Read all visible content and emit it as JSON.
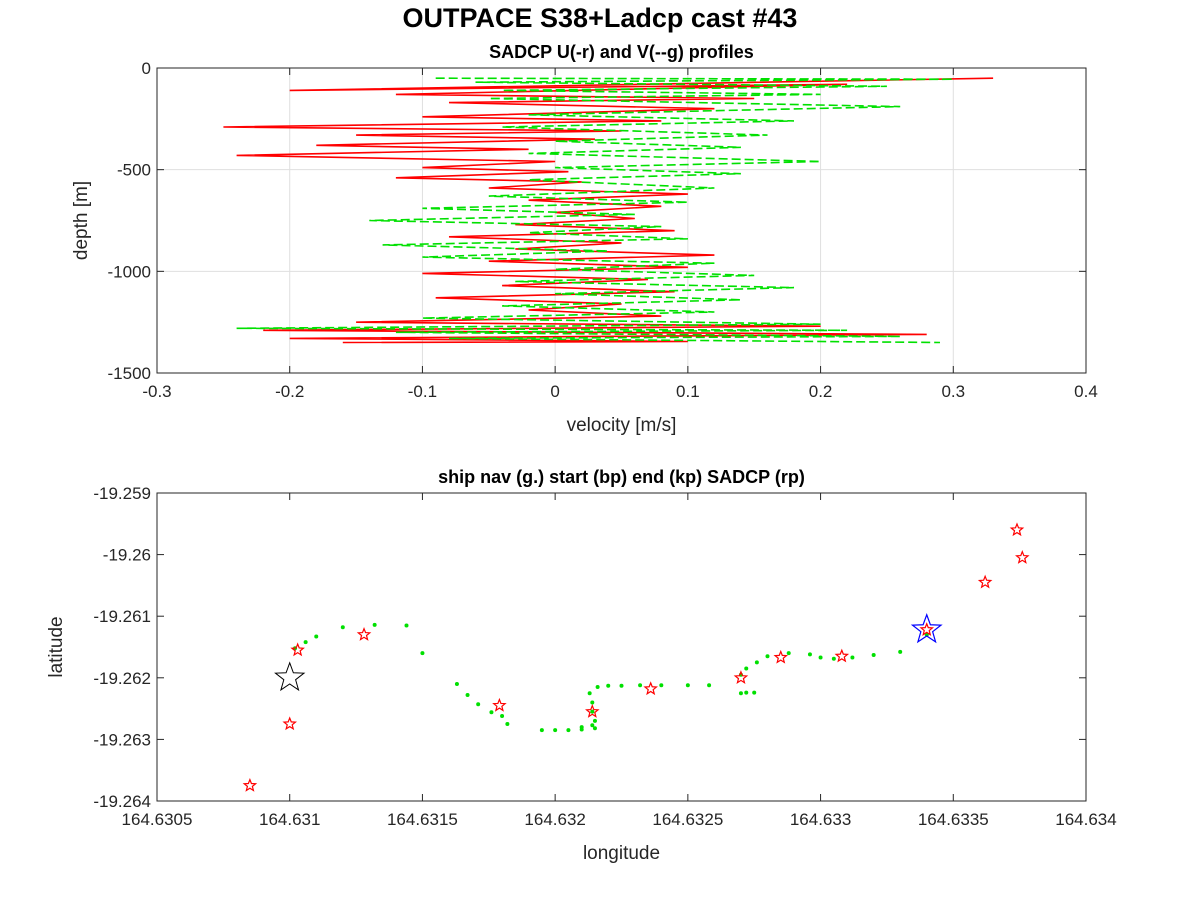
{
  "figure_title": "OUTPACE S38+Ladcp cast #43",
  "chart_data": [
    {
      "type": "line",
      "title": "SADCP U(-r) and V(--g) profiles",
      "xlabel": "velocity [m/s]",
      "ylabel": "depth [m]",
      "xlim": [
        -0.3,
        0.4
      ],
      "ylim": [
        -1500,
        0
      ],
      "xticks": [
        -0.3,
        -0.2,
        -0.1,
        0,
        0.1,
        0.2,
        0.3,
        0.4
      ],
      "yticks": [
        -1500,
        -1000,
        -500,
        0
      ],
      "xtick_labels": [
        "-0.3",
        "-0.2",
        "-0.1",
        "0",
        "0.1",
        "0.2",
        "0.3",
        "0.4"
      ],
      "ytick_labels": [
        "-1500",
        "-1000",
        "-500",
        "0"
      ],
      "grid": true,
      "series": [
        {
          "label": "U",
          "color": "#ff0000",
          "style": "solid",
          "points": [
            [
              0.33,
              -50
            ],
            [
              -0.2,
              -110
            ],
            [
              0.22,
              -80
            ],
            [
              -0.12,
              -130
            ],
            [
              0.15,
              -150
            ],
            [
              -0.08,
              -170
            ],
            [
              0.12,
              -200
            ],
            [
              -0.1,
              -240
            ],
            [
              0.08,
              -260
            ],
            [
              -0.25,
              -290
            ],
            [
              0.05,
              -310
            ],
            [
              -0.15,
              -330
            ],
            [
              0.03,
              -350
            ],
            [
              -0.18,
              -380
            ],
            [
              -0.02,
              -400
            ],
            [
              -0.24,
              -430
            ],
            [
              0.0,
              -460
            ],
            [
              -0.1,
              -490
            ],
            [
              0.01,
              -510
            ],
            [
              -0.12,
              -540
            ],
            [
              0.02,
              -560
            ],
            [
              -0.05,
              -590
            ],
            [
              0.1,
              -620
            ],
            [
              -0.02,
              -650
            ],
            [
              0.08,
              -680
            ],
            [
              0.0,
              -710
            ],
            [
              0.06,
              -740
            ],
            [
              -0.03,
              -770
            ],
            [
              0.09,
              -800
            ],
            [
              -0.08,
              -830
            ],
            [
              0.05,
              -860
            ],
            [
              -0.03,
              -890
            ],
            [
              0.12,
              -920
            ],
            [
              -0.05,
              -950
            ],
            [
              0.1,
              -980
            ],
            [
              -0.1,
              -1010
            ],
            [
              0.07,
              -1040
            ],
            [
              -0.04,
              -1070
            ],
            [
              0.09,
              -1100
            ],
            [
              -0.09,
              -1130
            ],
            [
              0.05,
              -1160
            ],
            [
              -0.02,
              -1190
            ],
            [
              0.08,
              -1220
            ],
            [
              -0.15,
              -1250
            ],
            [
              0.2,
              -1270
            ],
            [
              -0.22,
              -1290
            ],
            [
              0.28,
              -1310
            ],
            [
              -0.2,
              -1330
            ],
            [
              0.1,
              -1345
            ],
            [
              -0.16,
              -1350
            ]
          ]
        },
        {
          "label": "V",
          "color": "#00e000",
          "style": "dashed",
          "points": [
            [
              -0.09,
              -50
            ],
            [
              0.3,
              -55
            ],
            [
              -0.06,
              -70
            ],
            [
              0.25,
              -90
            ],
            [
              -0.04,
              -110
            ],
            [
              0.2,
              -130
            ],
            [
              -0.05,
              -150
            ],
            [
              0.26,
              -190
            ],
            [
              -0.02,
              -230
            ],
            [
              0.18,
              -260
            ],
            [
              -0.04,
              -290
            ],
            [
              0.16,
              -330
            ],
            [
              0.0,
              -360
            ],
            [
              0.14,
              -390
            ],
            [
              -0.02,
              -420
            ],
            [
              0.2,
              -460
            ],
            [
              0.0,
              -490
            ],
            [
              0.14,
              -520
            ],
            [
              -0.02,
              -550
            ],
            [
              0.12,
              -590
            ],
            [
              -0.05,
              -630
            ],
            [
              0.1,
              -660
            ],
            [
              -0.1,
              -690
            ],
            [
              0.06,
              -720
            ],
            [
              -0.14,
              -750
            ],
            [
              0.08,
              -780
            ],
            [
              -0.02,
              -810
            ],
            [
              0.1,
              -840
            ],
            [
              -0.13,
              -870
            ],
            [
              0.04,
              -900
            ],
            [
              -0.1,
              -930
            ],
            [
              0.12,
              -960
            ],
            [
              0.0,
              -990
            ],
            [
              0.15,
              -1020
            ],
            [
              -0.03,
              -1050
            ],
            [
              0.18,
              -1080
            ],
            [
              0.0,
              -1110
            ],
            [
              0.14,
              -1140
            ],
            [
              -0.04,
              -1170
            ],
            [
              0.12,
              -1200
            ],
            [
              -0.1,
              -1230
            ],
            [
              0.2,
              -1260
            ],
            [
              -0.24,
              -1280
            ],
            [
              0.22,
              -1290
            ],
            [
              -0.12,
              -1300
            ],
            [
              0.26,
              -1320
            ],
            [
              -0.08,
              -1330
            ],
            [
              0.29,
              -1350
            ]
          ]
        }
      ]
    },
    {
      "type": "scatter",
      "title": "ship nav (g.) start (bp) end (kp) SADCP (rp)",
      "xlabel": "longitude",
      "ylabel": "latitude",
      "xlim": [
        164.6305,
        164.634
      ],
      "ylim": [
        -19.264,
        -19.259
      ],
      "xticks": [
        164.6305,
        164.631,
        164.6315,
        164.632,
        164.6325,
        164.633,
        164.6335,
        164.634
      ],
      "yticks": [
        -19.264,
        -19.263,
        -19.262,
        -19.261,
        -19.26,
        -19.259
      ],
      "xtick_labels": [
        "164.6305",
        "164.631",
        "164.6315",
        "164.632",
        "164.6325",
        "164.633",
        "164.6335",
        "164.634"
      ],
      "ytick_labels": [
        "-19.264",
        "-19.263",
        "-19.262",
        "-19.261",
        "-19.26",
        "-19.259"
      ],
      "grid": false,
      "ship_nav": {
        "color": "#00e000",
        "points": [
          [
            164.63102,
            -19.26152
          ],
          [
            164.63106,
            -19.26142
          ],
          [
            164.6311,
            -19.26133
          ],
          [
            164.6312,
            -19.26118
          ],
          [
            164.63132,
            -19.26114
          ],
          [
            164.63144,
            -19.26115
          ],
          [
            164.6315,
            -19.2616
          ],
          [
            164.63163,
            -19.2621
          ],
          [
            164.63167,
            -19.26228
          ],
          [
            164.63171,
            -19.26243
          ],
          [
            164.63176,
            -19.26256
          ],
          [
            164.6318,
            -19.26262
          ],
          [
            164.63182,
            -19.26275
          ],
          [
            164.63195,
            -19.26285
          ],
          [
            164.632,
            -19.26285
          ],
          [
            164.63205,
            -19.26285
          ],
          [
            164.6321,
            -19.26284
          ],
          [
            164.63215,
            -19.26282
          ],
          [
            164.6321,
            -19.2628
          ],
          [
            164.63214,
            -19.26277
          ],
          [
            164.63215,
            -19.2627
          ],
          [
            164.63214,
            -19.26255
          ],
          [
            164.63214,
            -19.2624
          ],
          [
            164.63213,
            -19.26225
          ],
          [
            164.63216,
            -19.26215
          ],
          [
            164.6322,
            -19.26213
          ],
          [
            164.63225,
            -19.26213
          ],
          [
            164.63232,
            -19.26212
          ],
          [
            164.6324,
            -19.26212
          ],
          [
            164.6325,
            -19.26212
          ],
          [
            164.63258,
            -19.26212
          ],
          [
            164.6327,
            -19.26225
          ],
          [
            164.63272,
            -19.26224
          ],
          [
            164.63275,
            -19.26224
          ],
          [
            164.6327,
            -19.26195
          ],
          [
            164.63272,
            -19.26185
          ],
          [
            164.63276,
            -19.26175
          ],
          [
            164.6328,
            -19.26165
          ],
          [
            164.63288,
            -19.2616
          ],
          [
            164.63296,
            -19.26162
          ],
          [
            164.633,
            -19.26167
          ],
          [
            164.63305,
            -19.26169
          ],
          [
            164.63312,
            -19.26167
          ],
          [
            164.6332,
            -19.26163
          ],
          [
            164.6333,
            -19.26158
          ],
          [
            164.6334,
            -19.2613
          ]
        ],
        "radius_px": 2
      },
      "start_point": {
        "lon": 164.631,
        "lat": -19.262,
        "color": "#000000"
      },
      "end_point": {
        "lon": 164.6334,
        "lat": -19.26122,
        "color": "#0000ff"
      },
      "sadcp_points": {
        "color": "#ff0000",
        "points": [
          [
            164.63085,
            -19.26375
          ],
          [
            164.631,
            -19.26275
          ],
          [
            164.63103,
            -19.26155
          ],
          [
            164.63128,
            -19.2613
          ],
          [
            164.63179,
            -19.26245
          ],
          [
            164.63214,
            -19.26255
          ],
          [
            164.63236,
            -19.26218
          ],
          [
            164.6327,
            -19.262
          ],
          [
            164.63285,
            -19.26167
          ],
          [
            164.63308,
            -19.26165
          ],
          [
            164.6334,
            -19.26122
          ],
          [
            164.63362,
            -19.26045
          ],
          [
            164.63374,
            -19.2596
          ],
          [
            164.63376,
            -19.26005
          ]
        ]
      }
    }
  ]
}
